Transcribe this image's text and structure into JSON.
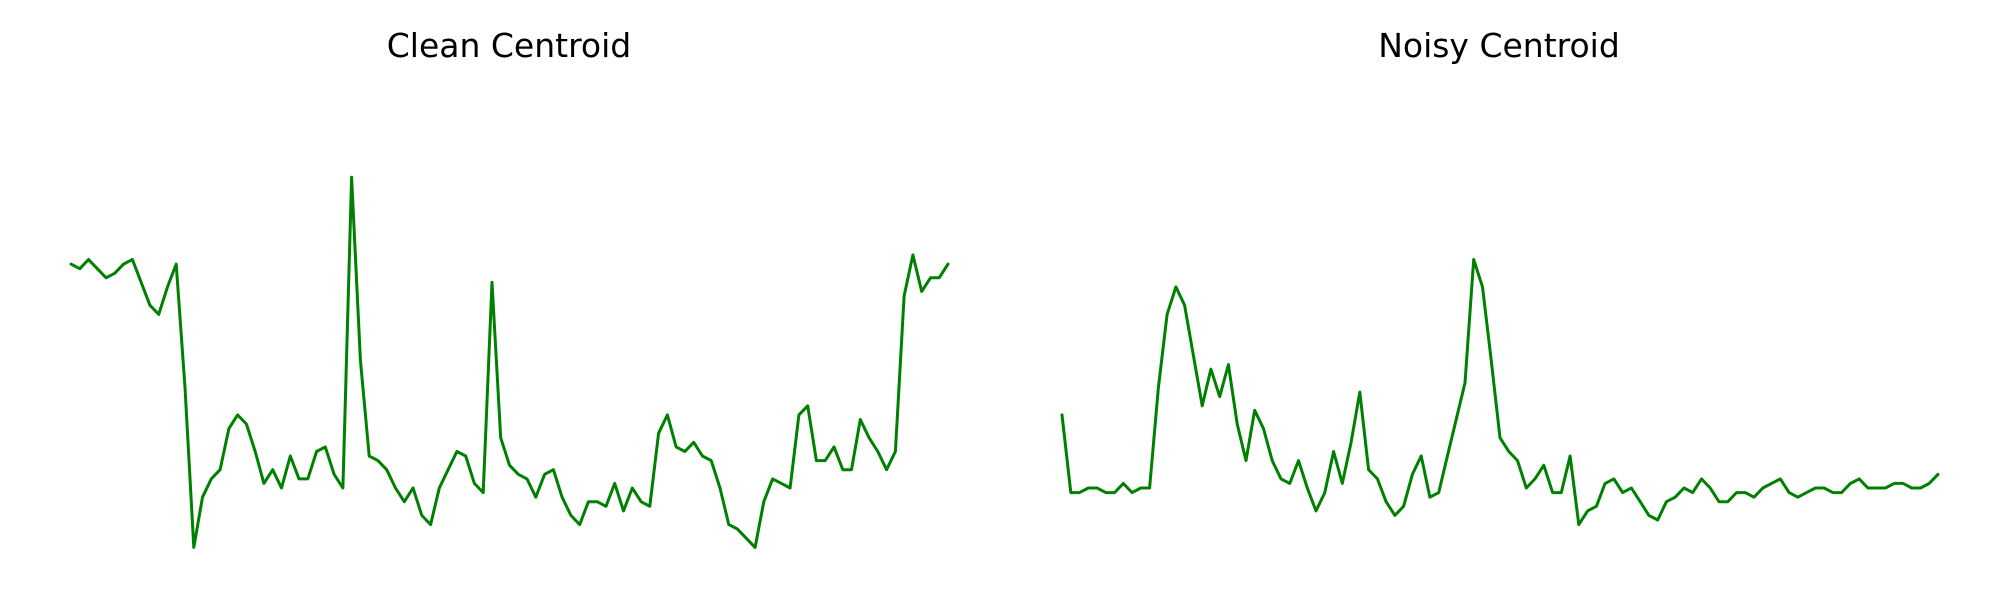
{
  "chart_data": [
    {
      "type": "line",
      "title": "Clean Centroid",
      "axis_visible": false,
      "grid": false,
      "xlim": [
        0,
        100
      ],
      "ylim": [
        0,
        100
      ],
      "series": [
        {
          "color": "#008000",
          "x": [
            0,
            1,
            2,
            3,
            4,
            5,
            6,
            7,
            8,
            9,
            10,
            11,
            12,
            13,
            14,
            15,
            16,
            17,
            18,
            19,
            20,
            21,
            22,
            23,
            24,
            25,
            26,
            27,
            28,
            29,
            30,
            31,
            32,
            33,
            34,
            35,
            36,
            37,
            38,
            39,
            40,
            41,
            42,
            43,
            44,
            45,
            46,
            47,
            48,
            49,
            50,
            51,
            52,
            53,
            54,
            55,
            56,
            57,
            58,
            59,
            60,
            61,
            62,
            63,
            64,
            65,
            66,
            67,
            68,
            69,
            70,
            71,
            72,
            73,
            74,
            75,
            76,
            77,
            78,
            79,
            80,
            81,
            82,
            83,
            84,
            85,
            86,
            87,
            88,
            89,
            90,
            91,
            92,
            93,
            94,
            95,
            96,
            97,
            98,
            99,
            100
          ],
          "y": [
            63,
            62,
            64,
            62,
            60,
            61,
            63,
            64,
            59,
            54,
            52,
            58,
            63,
            36,
            1,
            12,
            16,
            18,
            27,
            30,
            28,
            22,
            15,
            18,
            14,
            21,
            16,
            16,
            22,
            23,
            17,
            14,
            82,
            42,
            21,
            20,
            18,
            14,
            11,
            14,
            8,
            6,
            14,
            18,
            22,
            21,
            15,
            13,
            59,
            25,
            19,
            17,
            16,
            12,
            17,
            18,
            12,
            8,
            6,
            11,
            11,
            10,
            15,
            9,
            14,
            11,
            10,
            26,
            30,
            23,
            22,
            24,
            21,
            20,
            14,
            6,
            5,
            3,
            1,
            11,
            16,
            15,
            14,
            30,
            32,
            20,
            20,
            23,
            18,
            18,
            29,
            25,
            22,
            18,
            22,
            56,
            65,
            57,
            60,
            60,
            63
          ],
          "note": "approximate shape only; y-axis has no printed scale"
        }
      ]
    },
    {
      "type": "line",
      "title": "Noisy Centroid",
      "axis_visible": false,
      "grid": false,
      "xlim": [
        0,
        100
      ],
      "ylim": [
        0,
        100
      ],
      "series": [
        {
          "color": "#008000",
          "x": [
            0,
            1,
            2,
            3,
            4,
            5,
            6,
            7,
            8,
            9,
            10,
            11,
            12,
            13,
            14,
            15,
            16,
            17,
            18,
            19,
            20,
            21,
            22,
            23,
            24,
            25,
            26,
            27,
            28,
            29,
            30,
            31,
            32,
            33,
            34,
            35,
            36,
            37,
            38,
            39,
            40,
            41,
            42,
            43,
            44,
            45,
            46,
            47,
            48,
            49,
            50,
            51,
            52,
            53,
            54,
            55,
            56,
            57,
            58,
            59,
            60,
            61,
            62,
            63,
            64,
            65,
            66,
            67,
            68,
            69,
            70,
            71,
            72,
            73,
            74,
            75,
            76,
            77,
            78,
            79,
            80,
            81,
            82,
            83,
            84,
            85,
            86,
            87,
            88,
            89,
            90,
            91,
            92,
            93,
            94,
            95,
            96,
            97,
            98,
            99,
            100
          ],
          "y": [
            30,
            13,
            13,
            14,
            14,
            13,
            13,
            15,
            13,
            14,
            14,
            36,
            52,
            58,
            54,
            43,
            32,
            40,
            34,
            41,
            28,
            20,
            31,
            27,
            20,
            16,
            15,
            20,
            14,
            9,
            13,
            22,
            15,
            24,
            35,
            18,
            16,
            11,
            8,
            10,
            17,
            21,
            12,
            13,
            21,
            29,
            37,
            64,
            58,
            42,
            25,
            22,
            20,
            14,
            16,
            19,
            13,
            13,
            21,
            6,
            9,
            10,
            15,
            16,
            13,
            14,
            11,
            8,
            7,
            11,
            12,
            14,
            13,
            16,
            14,
            11,
            11,
            13,
            13,
            12,
            14,
            15,
            16,
            13,
            12,
            13,
            14,
            14,
            13,
            13,
            15,
            16,
            14,
            14,
            14,
            15,
            15,
            14,
            14,
            15,
            17
          ]
        }
      ]
    }
  ]
}
